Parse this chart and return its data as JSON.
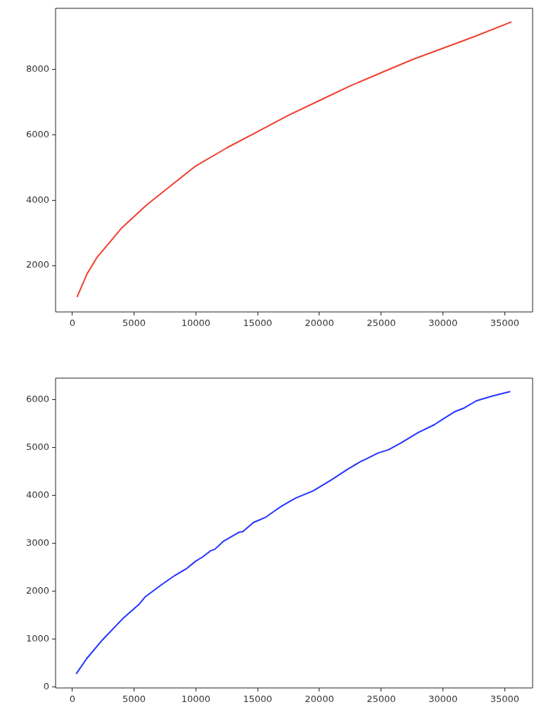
{
  "chart_data": [
    {
      "type": "line",
      "x": [
        400,
        1200,
        2000,
        3000,
        4000,
        5000,
        6000,
        7500,
        10000,
        12500,
        15000,
        17500,
        20000,
        22500,
        25000,
        27500,
        30000,
        32500,
        35500
      ],
      "series": [
        {
          "color": "#f03e2f",
          "values": [
            1050,
            1750,
            2250,
            2700,
            3150,
            3500,
            3850,
            4300,
            5050,
            5600,
            6100,
            6600,
            7050,
            7500,
            7900,
            8300,
            8650,
            9000,
            9450
          ]
        }
      ],
      "xlim": [
        -1355,
        37255
      ],
      "xticks": [
        0,
        5000,
        10000,
        15000,
        20000,
        25000,
        30000,
        35000
      ],
      "ylim": [
        578,
        9872
      ],
      "yticks": [
        2000,
        4000,
        6000,
        8000
      ],
      "grid": false
    },
    {
      "type": "line",
      "x": [
        340,
        1165,
        2440,
        4150,
        5430,
        5910,
        7270,
        8270,
        9260,
        9970,
        10540,
        11190,
        11530,
        12240,
        13520,
        13800,
        14660,
        15650,
        16360,
        16930,
        18070,
        19490,
        20910,
        22330,
        23320,
        23890,
        24740,
        25600,
        26590,
        28010,
        29290,
        30000,
        31000,
        31710,
        32700,
        33980,
        35400
      ],
      "series": [
        {
          "color": "#2233ff",
          "values": [
            280,
            590,
            980,
            1440,
            1730,
            1880,
            2140,
            2320,
            2470,
            2620,
            2710,
            2840,
            2870,
            3040,
            3230,
            3240,
            3430,
            3540,
            3670,
            3770,
            3940,
            4090,
            4310,
            4550,
            4700,
            4770,
            4880,
            4950,
            5090,
            5310,
            5470,
            5590,
            5750,
            5820,
            5970,
            6070,
            6160
          ]
        }
      ],
      "xlim": [
        -1355,
        37255
      ],
      "xticks": [
        0,
        5000,
        10000,
        15000,
        20000,
        25000,
        30000,
        35000
      ],
      "ylim": [
        -24,
        6444
      ],
      "yticks": [
        0,
        1000,
        2000,
        3000,
        4000,
        5000,
        6000
      ],
      "grid": false
    }
  ]
}
